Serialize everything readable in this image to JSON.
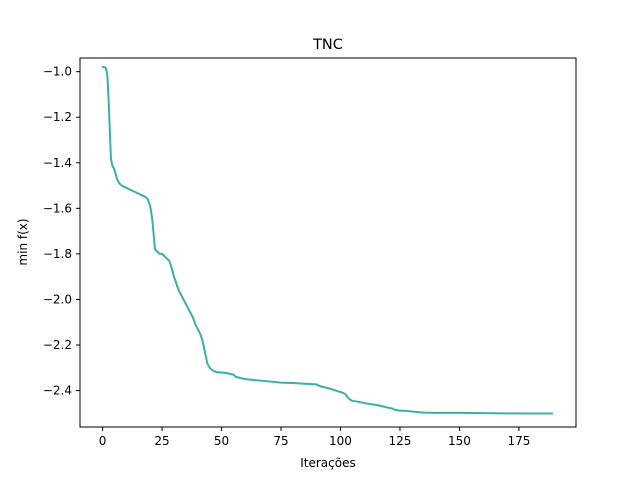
{
  "chart_data": {
    "type": "line",
    "title": "TNC",
    "xlabel": "Iterações",
    "ylabel": "min f(x)",
    "xlim": [
      -9.5,
      199
    ],
    "ylim": [
      -2.56,
      -0.94
    ],
    "xticks": [
      0,
      25,
      50,
      75,
      100,
      125,
      150,
      175
    ],
    "yticks": [
      -1.0,
      -1.2,
      -1.4,
      -1.6,
      -1.8,
      -2.0,
      -2.2,
      -2.4
    ],
    "ytick_labels": [
      "−1.0",
      "−1.2",
      "−1.4",
      "−1.6",
      "−1.8",
      "−2.0",
      "−2.2",
      "−2.4"
    ],
    "grid": false,
    "legend": "none",
    "series": [
      {
        "color": "#3ab0a8",
        "x": [
          0,
          1,
          1.5,
          2,
          2.5,
          3,
          3.5,
          4,
          5,
          6,
          7,
          8,
          10,
          12,
          14,
          16,
          18,
          19,
          20,
          20.5,
          21,
          21.5,
          22,
          23,
          24,
          25,
          26,
          28,
          29,
          30,
          31,
          32,
          33,
          34,
          35,
          36,
          37,
          38,
          39,
          40,
          41,
          42,
          43,
          44,
          45,
          46,
          48,
          50,
          53,
          55,
          56,
          58,
          60,
          65,
          70,
          75,
          80,
          85,
          88,
          90,
          91,
          93,
          95,
          98,
          101,
          102,
          103,
          104,
          105,
          108,
          110,
          113,
          116,
          118,
          120,
          122,
          123,
          125,
          128,
          130,
          133,
          135,
          140,
          150,
          160,
          170,
          180,
          189
        ],
        "y": [
          -0.98,
          -0.98,
          -0.99,
          -1.02,
          -1.12,
          -1.25,
          -1.38,
          -1.41,
          -1.43,
          -1.47,
          -1.49,
          -1.5,
          -1.51,
          -1.52,
          -1.53,
          -1.54,
          -1.55,
          -1.56,
          -1.59,
          -1.62,
          -1.66,
          -1.72,
          -1.78,
          -1.79,
          -1.8,
          -1.8,
          -1.81,
          -1.83,
          -1.86,
          -1.9,
          -1.93,
          -1.96,
          -1.98,
          -2.0,
          -2.02,
          -2.04,
          -2.06,
          -2.08,
          -2.11,
          -2.13,
          -2.15,
          -2.18,
          -2.23,
          -2.28,
          -2.3,
          -2.31,
          -2.32,
          -2.32,
          -2.325,
          -2.33,
          -2.34,
          -2.345,
          -2.35,
          -2.355,
          -2.36,
          -2.365,
          -2.367,
          -2.37,
          -2.372,
          -2.373,
          -2.38,
          -2.385,
          -2.39,
          -2.4,
          -2.41,
          -2.415,
          -2.43,
          -2.44,
          -2.445,
          -2.45,
          -2.455,
          -2.46,
          -2.465,
          -2.47,
          -2.475,
          -2.48,
          -2.485,
          -2.488,
          -2.49,
          -2.492,
          -2.495,
          -2.497,
          -2.498,
          -2.498,
          -2.499,
          -2.5,
          -2.501,
          -2.501
        ]
      }
    ]
  }
}
